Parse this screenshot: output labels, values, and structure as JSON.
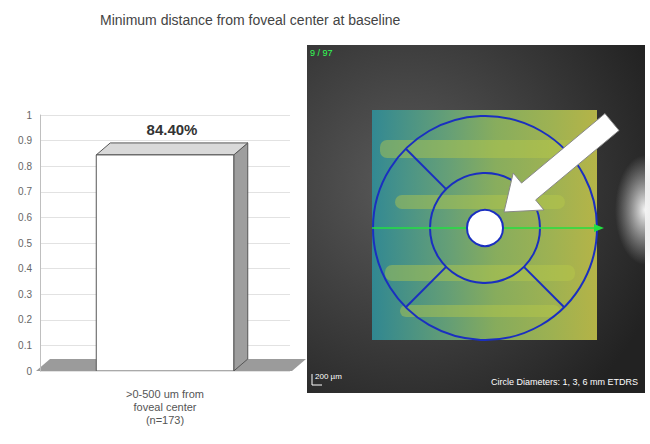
{
  "chart_data": {
    "type": "bar",
    "title": "Minimum distance from foveal center at baseline",
    "categories": [
      ">0-500 um from foveal center (n=173)"
    ],
    "values": [
      0.844
    ],
    "value_labels": [
      "84.40%"
    ],
    "color": "#ffffff",
    "ylim": [
      0,
      1
    ],
    "yticks": [
      0,
      0.1,
      0.2,
      0.3,
      0.4,
      0.5,
      0.6,
      0.7,
      0.8,
      0.9,
      1
    ],
    "grid": true,
    "data_labels": true,
    "inset": {
      "frame_label": "9 / 97",
      "scale_label": "200 µm",
      "caption": "Circle Diameters: 1, 3, 6 mm ETDRS"
    }
  }
}
